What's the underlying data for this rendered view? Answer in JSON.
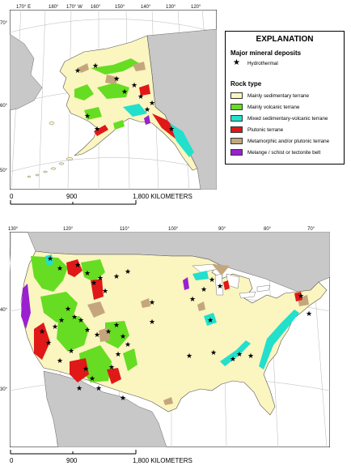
{
  "legend": {
    "title": "EXPLANATION",
    "deposits_heading": "Major mineral deposits",
    "deposit_item": {
      "label": "Hydrothermal",
      "icon": "star-icon"
    },
    "rock_heading": "Rock type",
    "rock_types": [
      {
        "label": "Mainly sedimentary terrane",
        "color": "#fbf5c0"
      },
      {
        "label": "Mainly volcanic terrane",
        "color": "#66dd22"
      },
      {
        "label": "Mixed sedimentary-volcanic terrane",
        "color": "#22e0cc"
      },
      {
        "label": "Plutonic terrane",
        "color": "#e01818"
      },
      {
        "label": "Metamorphic and/or plutonic terrane",
        "color": "#c4a67e"
      },
      {
        "label": "Melange / schist or tectonite belt",
        "color": "#9a20d0"
      }
    ]
  },
  "alaska_map": {
    "lon_labels": [
      "170° E",
      "180°",
      "170° W",
      "160°",
      "150°",
      "140°",
      "130°",
      "120°"
    ],
    "lat_labels": [
      "70°",
      "60°",
      "50°"
    ],
    "scale": {
      "ticks": [
        "0",
        "900",
        "1,800 KILOMETERS"
      ]
    }
  },
  "conus_map": {
    "lon_labels": [
      "130°",
      "120°",
      "110°",
      "100°",
      "90°",
      "80°",
      "70°"
    ],
    "lat_labels": [
      "40°",
      "30°"
    ],
    "scale": {
      "ticks": [
        "0",
        "900",
        "1,800 KILOMETERS"
      ]
    }
  },
  "colors": {
    "water": "#ffffff",
    "land_other": "#c8c8c8",
    "border": "#555555"
  }
}
